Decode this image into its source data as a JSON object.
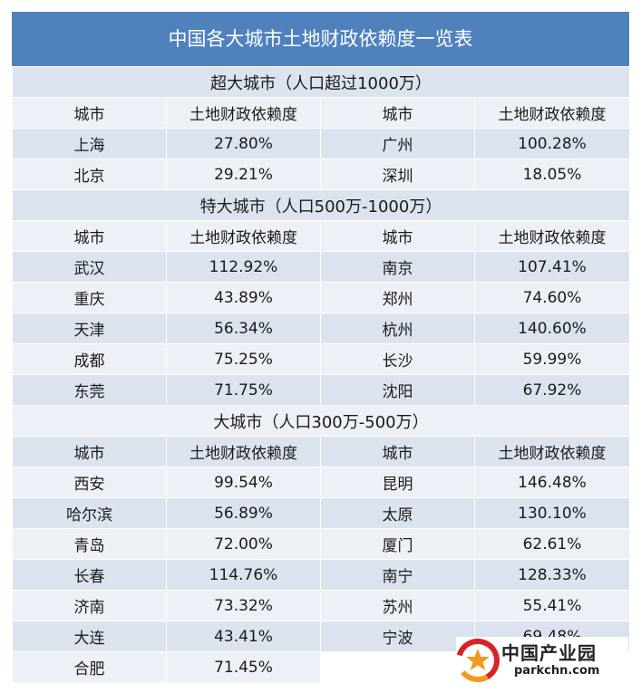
{
  "title": "中国各大城市土地财政依赖度一览表",
  "sections": [
    {
      "label": "超大城市（人口超过1000万）",
      "header": [
        "城市",
        "土地财政依赖度",
        "城市",
        "土地财政依赖度"
      ],
      "rows": [
        [
          "上海",
          "27.80%",
          "广州",
          "100.28%"
        ],
        [
          "北京",
          "29.21%",
          "深圳",
          "18.05%"
        ]
      ]
    },
    {
      "label": "特大城市（人口500万-1000万）",
      "header": [
        "城市",
        "土地财政依赖度",
        "城市",
        "土地财政依赖度"
      ],
      "rows": [
        [
          "武汉",
          "112.92%",
          "南京",
          "107.41%"
        ],
        [
          "重庆",
          "43.89%",
          "郑州",
          "74.60%"
        ],
        [
          "天津",
          "56.34%",
          "杭州",
          "140.60%"
        ],
        [
          "成都",
          "75.25%",
          "长沙",
          "59.99%"
        ],
        [
          "东莞",
          "71.75%",
          "沈阳",
          "67.92%"
        ]
      ]
    },
    {
      "label": "大城市（人口300万-500万）",
      "header": [
        "城市",
        "土地财政依赖度",
        "城市",
        "土地财政依赖度"
      ],
      "rows": [
        [
          "西安",
          "99.54%",
          "昆明",
          "146.48%"
        ],
        [
          "哈尔滨",
          "56.89%",
          "太原",
          "130.10%"
        ],
        [
          "青岛",
          "72.00%",
          "厦门",
          "62.61%"
        ],
        [
          "长春",
          "114.76%",
          "南宁",
          "128.33%"
        ],
        [
          "济南",
          "73.32%",
          "苏州",
          "55.41%"
        ],
        [
          "大连",
          "43.41%",
          "宁波",
          "69.48%"
        ],
        [
          "合肥",
          "71.45%",
          "",
          ""
        ]
      ]
    }
  ],
  "watermark": {
    "name": "中国产业园",
    "url": "parkchn.com",
    "logo_colors": [
      "#d9232a",
      "#f39a1e"
    ]
  },
  "colors": {
    "title_bg": "#4f81bd",
    "row_dark": "#dbe3ef",
    "row_light": "#edf1f7"
  }
}
